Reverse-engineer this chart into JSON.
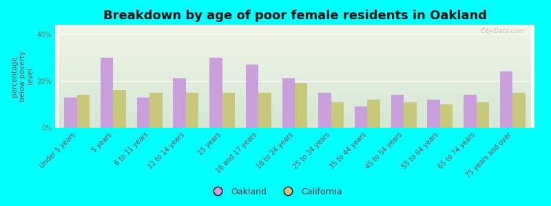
{
  "title": "Breakdown by age of poor female residents in Oakland",
  "ylabel": "percentage\nbelow poverty\nlevel",
  "categories": [
    "Under 5 years",
    "5 years",
    "6 to 11 years",
    "12 to 14 years",
    "15 years",
    "16 and 17 years",
    "18 to 24 years",
    "25 to 34 years",
    "35 to 44 years",
    "45 to 54 years",
    "55 to 64 years",
    "65 to 74 years",
    "75 years and over"
  ],
  "oakland_values": [
    13,
    30,
    13,
    21,
    30,
    27,
    21,
    15,
    9,
    14,
    12,
    14,
    24
  ],
  "california_values": [
    14,
    16,
    15,
    15,
    15,
    15,
    19,
    11,
    12,
    11,
    10,
    11,
    15
  ],
  "oakland_color": "#c9a0dc",
  "california_color": "#c8c87a",
  "background_color": "#00ffff",
  "plot_bg_top": "#f2f4e8",
  "plot_bg_bottom": "#d4e8d4",
  "ylim": [
    0,
    44
  ],
  "ytick_labels": [
    "0%",
    "20%",
    "40%"
  ],
  "ytick_values": [
    0,
    20,
    40
  ],
  "legend_oakland": "Oakland",
  "legend_california": "California",
  "title_fontsize": 13,
  "ylabel_fontsize": 7.5,
  "tick_fontsize": 7,
  "watermark": "City-Data.com"
}
